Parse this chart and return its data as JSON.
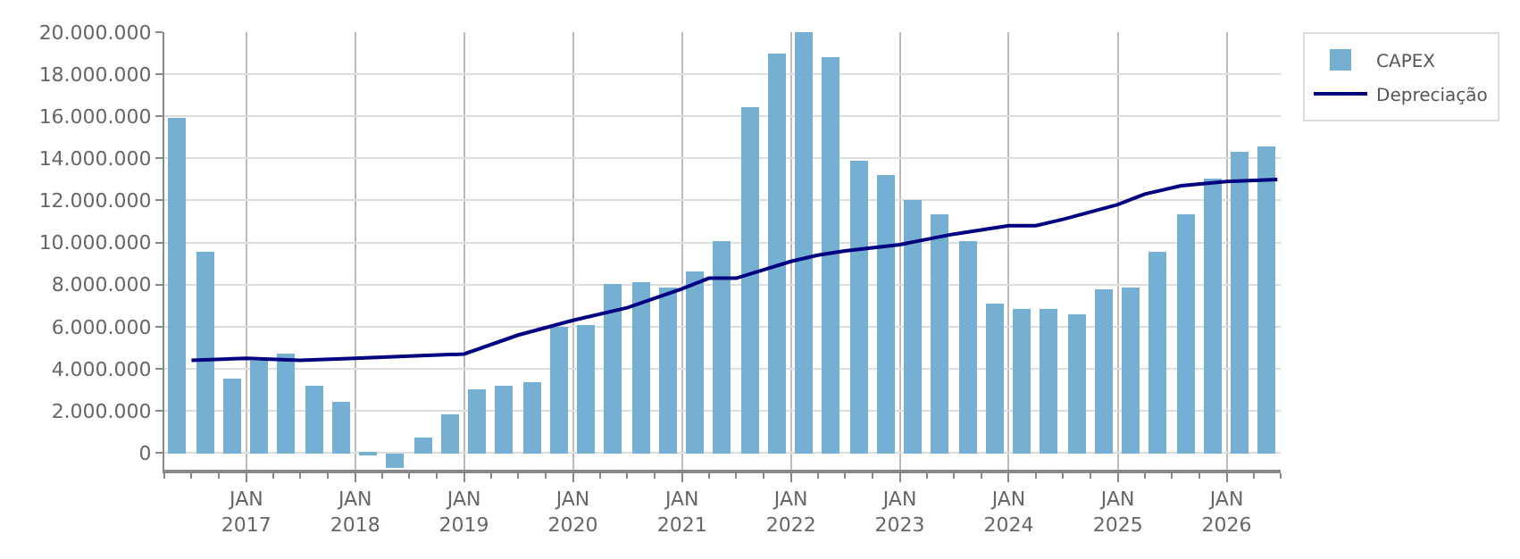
{
  "chart_data": {
    "type": "bar",
    "x": [
      "2016-05-15",
      "2016-08-15",
      "2016-11-15",
      "2017-02-15",
      "2017-05-15",
      "2017-08-15",
      "2017-11-15",
      "2018-02-15",
      "2018-05-15",
      "2018-08-15",
      "2018-11-15",
      "2019-02-15",
      "2019-05-15",
      "2019-08-15",
      "2019-11-15",
      "2020-02-15",
      "2020-05-15",
      "2020-08-15",
      "2020-11-15",
      "2021-02-15",
      "2021-05-15",
      "2021-08-15",
      "2021-11-15",
      "2022-02-15",
      "2022-05-15",
      "2022-08-15",
      "2022-11-15",
      "2023-02-15",
      "2023-05-15",
      "2023-08-15",
      "2023-11-15",
      "2024-02-15",
      "2024-05-15",
      "2024-08-15",
      "2024-11-15",
      "2025-02-15",
      "2025-05-15",
      "2025-08-15",
      "2025-11-15",
      "2026-02-15",
      "2026-05-15"
    ],
    "series": [
      {
        "name": "CAPEX",
        "color": "#75afd1",
        "values": [
          15900000,
          9600000,
          3500000,
          4400000,
          4700000,
          3200000,
          2400000,
          -100000,
          -700000,
          700000,
          1800000,
          3000000,
          3200000,
          3400000,
          6000000,
          6100000,
          8000000,
          8100000,
          7900000,
          8600000,
          10100000,
          16400000,
          19000000,
          20000000,
          18800000,
          13900000,
          13200000,
          12000000,
          11300000,
          10100000,
          7100000,
          6800000,
          6800000,
          6600000,
          7800000,
          7900000,
          9600000,
          11300000,
          13000000,
          14300000,
          14600000
        ]
      },
      {
        "name": "Depreciação",
        "type": "line",
        "color": "#000080",
        "x": [
          "2016-07-01",
          "2017-01-01",
          "2017-07-01",
          "2018-01-01",
          "2018-07-01",
          "2019-01-01",
          "2019-07-01",
          "2020-01-01",
          "2020-07-01",
          "2021-01-01",
          "2021-04-01",
          "2021-07-01",
          "2022-01-01",
          "2022-04-01",
          "2022-07-01",
          "2023-01-01",
          "2023-07-01",
          "2024-01-01",
          "2024-04-01",
          "2024-07-01",
          "2025-01-01",
          "2025-04-01",
          "2025-08-01",
          "2026-01-01",
          "2026-06-20"
        ],
        "values": [
          4400000,
          4500000,
          4400000,
          4500000,
          4600000,
          4700000,
          5600000,
          6300000,
          6900000,
          7800000,
          8300000,
          8300000,
          9100000,
          9400000,
          9600000,
          9900000,
          10400000,
          10800000,
          10800000,
          11100000,
          11800000,
          12300000,
          12700000,
          12900000,
          13000000
        ]
      }
    ],
    "xlim": [
      "2016-04-01",
      "2026-07-01"
    ],
    "xticks": [
      {
        "value": "2017-01-01",
        "label": "JAN\n2017"
      },
      {
        "value": "2018-01-01",
        "label": "JAN\n2018"
      },
      {
        "value": "2019-01-01",
        "label": "JAN\n2019"
      },
      {
        "value": "2020-01-01",
        "label": "JAN\n2020"
      },
      {
        "value": "2021-01-01",
        "label": "JAN\n2021"
      },
      {
        "value": "2022-01-01",
        "label": "JAN\n2022"
      },
      {
        "value": "2023-01-01",
        "label": "JAN\n2023"
      },
      {
        "value": "2024-01-01",
        "label": "JAN\n2024"
      },
      {
        "value": "2025-01-01",
        "label": "JAN\n2025"
      },
      {
        "value": "2026-01-01",
        "label": "JAN\n2026"
      }
    ],
    "ylim": [
      -800000,
      20000000
    ],
    "yticks": [
      {
        "value": 0,
        "label": "0"
      },
      {
        "value": 2000000,
        "label": "2.000.000"
      },
      {
        "value": 4000000,
        "label": "4.000.000"
      },
      {
        "value": 6000000,
        "label": "6.000.000"
      },
      {
        "value": 8000000,
        "label": "8.000.000"
      },
      {
        "value": 10000000,
        "label": "10.000.000"
      },
      {
        "value": 12000000,
        "label": "12.000.000"
      },
      {
        "value": 14000000,
        "label": "14.000.000"
      },
      {
        "value": 16000000,
        "label": "16.000.000"
      },
      {
        "value": 18000000,
        "label": "18.000.000"
      },
      {
        "value": 20000000,
        "label": "20.000.000"
      }
    ],
    "grid": true,
    "legend": "top right",
    "marker": "none",
    "line_style": "solid"
  }
}
